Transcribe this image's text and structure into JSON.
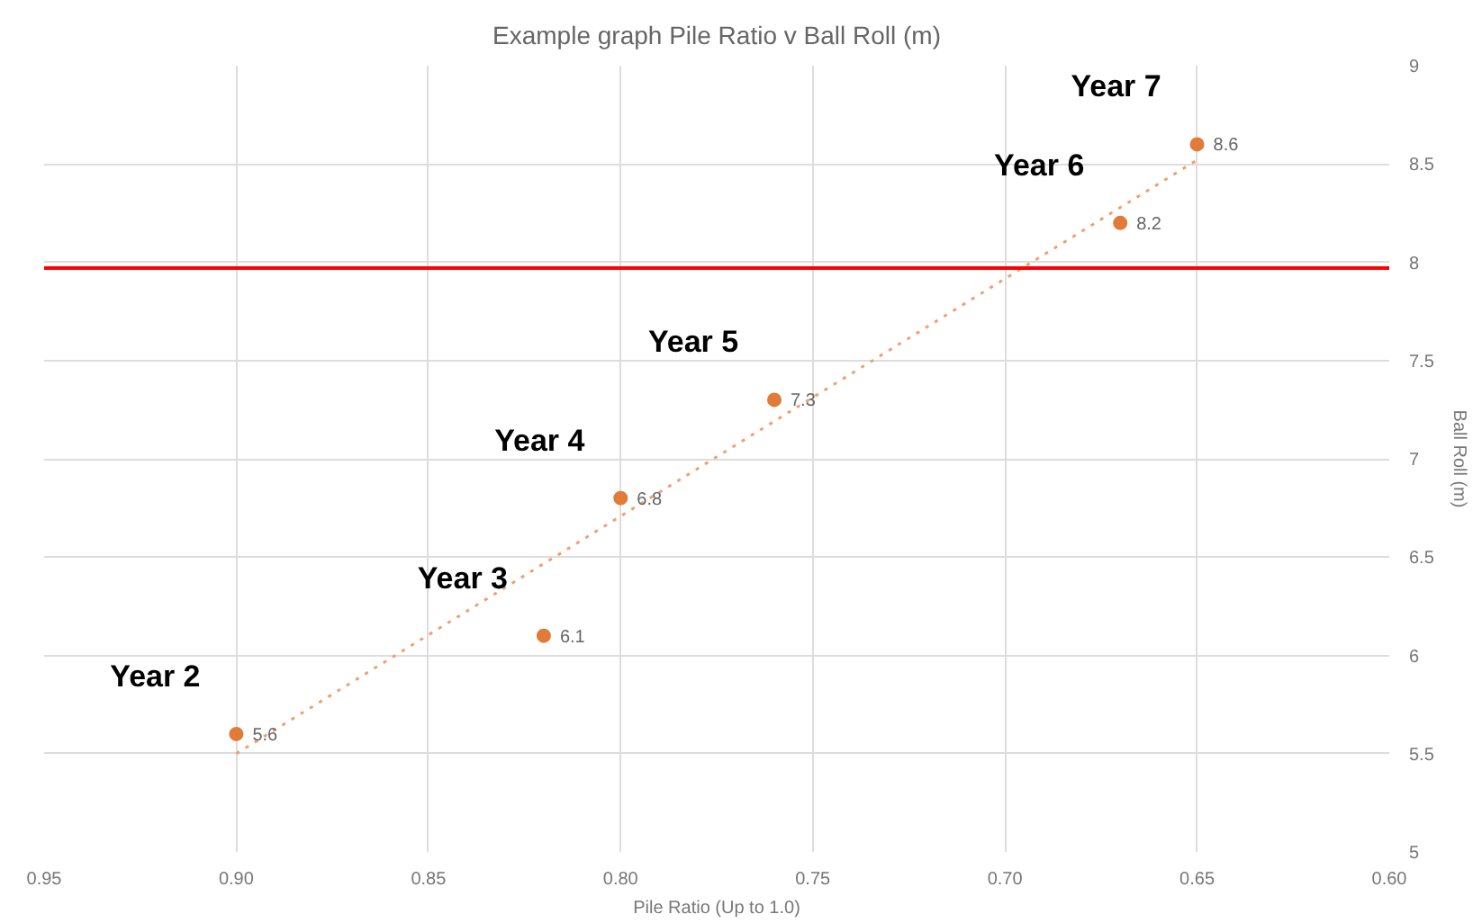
{
  "chart_data": {
    "type": "scatter",
    "title": "Example graph Pile Ratio v Ball Roll (m)",
    "xlabel": "Pile Ratio (Up to 1.0)",
    "ylabel": "Ball Roll (m)",
    "x": [
      0.9,
      0.82,
      0.8,
      0.76,
      0.67,
      0.65
    ],
    "series": [
      {
        "color": "#e07b39",
        "values": [
          5.6,
          6.1,
          6.8,
          7.3,
          8.2,
          8.6
        ],
        "marker": "circle",
        "value_labels": [
          "5.6",
          "6.1",
          "6.8",
          "7.3",
          "8.2",
          "8.6"
        ]
      },
      {
        "type": "line",
        "color": "#f0a070",
        "x": [
          0.9,
          0.65
        ],
        "values": [
          5.5,
          8.52
        ],
        "line_style": "dotted"
      }
    ],
    "xlim": [
      0.95,
      0.6
    ],
    "xticks": [
      {
        "value": 0.95,
        "label": "0.95"
      },
      {
        "value": 0.9,
        "label": "0.90"
      },
      {
        "value": 0.85,
        "label": "0.85"
      },
      {
        "value": 0.8,
        "label": "0.80"
      },
      {
        "value": 0.75,
        "label": "0.75"
      },
      {
        "value": 0.7,
        "label": "0.70"
      },
      {
        "value": 0.65,
        "label": "0.65"
      },
      {
        "value": 0.6,
        "label": "0.60"
      }
    ],
    "ylim": [
      5,
      9
    ],
    "yticks": [
      5,
      5.5,
      6,
      6.5,
      7,
      7.5,
      8,
      8.5,
      9
    ],
    "grid": true,
    "ref_lines": [
      {
        "axis": "y",
        "value": 7.97,
        "color": "#ff0000"
      }
    ],
    "annotations": [
      "Year 2",
      "Year 3",
      "Year 4",
      "Year 5",
      "Year 6",
      "Year 7"
    ]
  }
}
